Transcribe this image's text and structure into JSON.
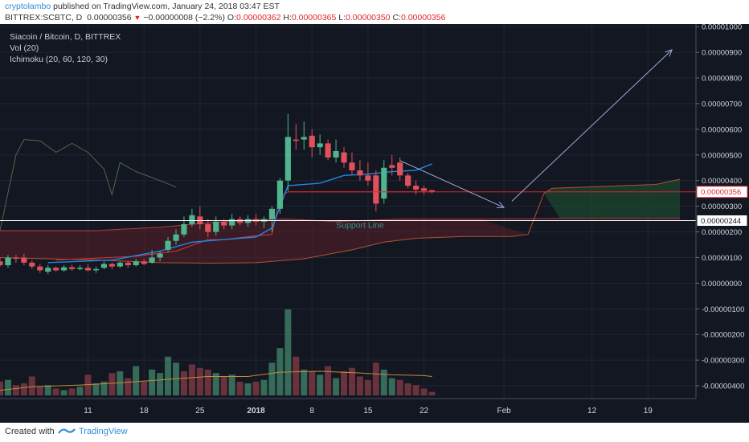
{
  "header": {
    "author": "cryptolambo",
    "published": "published on TradingView.com, January 24, 2018 03:47 EST",
    "symbol": "BITTREX:SCBTC, D",
    "last": "0.00000356",
    "change": "−0.00000008 (−2.2%)",
    "o_label": "O:",
    "o_value": "0.00000362",
    "h_label": "H:",
    "h_value": "0.00000365",
    "l_label": "L:",
    "l_value": "0.00000350",
    "c_label": "C:",
    "c_value": "0.00000356"
  },
  "legend": {
    "title": "Siacoin / Bitcoin, D, BITTREX",
    "vol": "Vol (20)",
    "ichimoku": "Ichimoku (20, 60, 120, 30)"
  },
  "footer": {
    "created": "Created with",
    "brand": "TradingView"
  },
  "colors": {
    "background": "#131722",
    "up": "#4fb58e",
    "down": "#e0515b",
    "ma": "#1e88e5",
    "support": "#ffffff",
    "arrow": "#9aa8d6",
    "last_price": "#e0252c"
  },
  "chart_data": {
    "type": "candlestick",
    "title": "Siacoin / Bitcoin, D, BITTREX",
    "y_axis": {
      "range": [
        -4.5e-06,
        1.01e-05
      ],
      "ticks": [
        "0.00001000",
        "0.00000900",
        "0.00000800",
        "0.00000700",
        "0.00000600",
        "0.00000500",
        "0.00000400",
        "0.00000300",
        "0.00000200",
        "0.00000100",
        "0.00000000",
        "-0.00000100",
        "-0.00000200",
        "-0.00000300",
        "-0.00000400"
      ],
      "tick_values": [
        1e-05,
        9e-06,
        8e-06,
        7e-06,
        6e-06,
        5e-06,
        4e-06,
        3e-06,
        2e-06,
        1e-06,
        0,
        -1e-06,
        -2e-06,
        -3e-06,
        -4e-06
      ]
    },
    "x_axis": {
      "ticks": [
        "11",
        "18",
        "25",
        "2018",
        "8",
        "15",
        "22",
        "Feb",
        "12",
        "19"
      ],
      "tick_days": [
        -21,
        -14,
        -7,
        0,
        7,
        14,
        21,
        31,
        42,
        49
      ],
      "range_days": [
        -32,
        55
      ]
    },
    "candles": [
      {
        "d": -32,
        "o": 8.5e-07,
        "h": 1e-06,
        "l": 6.5e-07,
        "c": 7e-07
      },
      {
        "d": -31,
        "o": 7e-07,
        "h": 1.1e-06,
        "l": 6e-07,
        "c": 1e-06
      },
      {
        "d": -30,
        "o": 1e-06,
        "h": 1.1e-06,
        "l": 8e-07,
        "c": 9.5e-07
      },
      {
        "d": -29,
        "o": 1e-06,
        "h": 1.15e-06,
        "l": 7e-07,
        "c": 8e-07
      },
      {
        "d": -28,
        "o": 8e-07,
        "h": 9e-07,
        "l": 5.5e-07,
        "c": 6.5e-07
      },
      {
        "d": -27,
        "o": 6.5e-07,
        "h": 7.5e-07,
        "l": 4e-07,
        "c": 5e-07
      },
      {
        "d": -26,
        "o": 4.5e-07,
        "h": 7e-07,
        "l": 3.5e-07,
        "c": 6e-07
      },
      {
        "d": -25,
        "o": 6e-07,
        "h": 6.5e-07,
        "l": 4.5e-07,
        "c": 5e-07
      },
      {
        "d": -24,
        "o": 5e-07,
        "h": 7e-07,
        "l": 4.5e-07,
        "c": 6.2e-07
      },
      {
        "d": -23,
        "o": 6.2e-07,
        "h": 7.2e-07,
        "l": 4.8e-07,
        "c": 5.5e-07
      },
      {
        "d": -22,
        "o": 5.5e-07,
        "h": 7e-07,
        "l": 5e-07,
        "c": 6e-07
      },
      {
        "d": -21,
        "o": 6e-07,
        "h": 7.5e-07,
        "l": 4.5e-07,
        "c": 5e-07
      },
      {
        "d": -20,
        "o": 5e-07,
        "h": 6.5e-07,
        "l": 4e-07,
        "c": 5.5e-07
      },
      {
        "d": -19,
        "o": 6e-07,
        "h": 8.5e-07,
        "l": 5.5e-07,
        "c": 7.5e-07
      },
      {
        "d": -18,
        "o": 7.5e-07,
        "h": 8e-07,
        "l": 5.5e-07,
        "c": 6.5e-07
      },
      {
        "d": -17,
        "o": 6.5e-07,
        "h": 8.5e-07,
        "l": 6e-07,
        "c": 8e-07
      },
      {
        "d": -16,
        "o": 8e-07,
        "h": 8.5e-07,
        "l": 6e-07,
        "c": 7e-07
      },
      {
        "d": -15,
        "o": 7e-07,
        "h": 9.5e-07,
        "l": 6.5e-07,
        "c": 8.5e-07
      },
      {
        "d": -14,
        "o": 8.5e-07,
        "h": 9.5e-07,
        "l": 7e-07,
        "c": 7.5e-07
      },
      {
        "d": -13,
        "o": 8e-07,
        "h": 1.3e-06,
        "l": 7.5e-07,
        "c": 1e-06
      },
      {
        "d": -12,
        "o": 1e-06,
        "h": 1.25e-06,
        "l": 8.5e-07,
        "c": 1.15e-06
      },
      {
        "d": -11,
        "o": 1.3e-06,
        "h": 1.8e-06,
        "l": 1.2e-06,
        "c": 1.65e-06
      },
      {
        "d": -10,
        "o": 1.65e-06,
        "h": 2.1e-06,
        "l": 1.5e-06,
        "c": 1.9e-06
      },
      {
        "d": -9,
        "o": 1.9e-06,
        "h": 2.6e-06,
        "l": 1.8e-06,
        "c": 2.3e-06
      },
      {
        "d": -8,
        "o": 2.3e-06,
        "h": 2.9e-06,
        "l": 2.2e-06,
        "c": 2.65e-06
      },
      {
        "d": -7,
        "o": 2.6e-06,
        "h": 3e-06,
        "l": 2.1e-06,
        "c": 2.3e-06
      },
      {
        "d": -6,
        "o": 2.3e-06,
        "h": 2.5e-06,
        "l": 1.8e-06,
        "c": 2e-06
      },
      {
        "d": -5,
        "o": 2e-06,
        "h": 2.6e-06,
        "l": 1.85e-06,
        "c": 2.4e-06
      },
      {
        "d": -4,
        "o": 2.4e-06,
        "h": 2.5e-06,
        "l": 2.1e-06,
        "c": 2.25e-06
      },
      {
        "d": -3,
        "o": 2.25e-06,
        "h": 2.7e-06,
        "l": 2.1e-06,
        "c": 2.5e-06
      },
      {
        "d": -2,
        "o": 2.5e-06,
        "h": 2.6e-06,
        "l": 2.25e-06,
        "c": 2.35e-06
      },
      {
        "d": -1,
        "o": 2.35e-06,
        "h": 2.65e-06,
        "l": 2.2e-06,
        "c": 2.5e-06
      },
      {
        "d": 0,
        "o": 2.5e-06,
        "h": 2.7e-06,
        "l": 2.25e-06,
        "c": 2.4e-06
      },
      {
        "d": 1,
        "o": 2.4e-06,
        "h": 2.6e-06,
        "l": 2.15e-06,
        "c": 2.5e-06
      },
      {
        "d": 2,
        "o": 2.5e-06,
        "h": 3e-06,
        "l": 2e-06,
        "c": 2.9e-06
      },
      {
        "d": 3,
        "o": 2.9e-06,
        "h": 4.1e-06,
        "l": 2.7e-06,
        "c": 4e-06
      },
      {
        "d": 4,
        "o": 4e-06,
        "h": 6.6e-06,
        "l": 3.6e-06,
        "c": 5.7e-06
      },
      {
        "d": 5,
        "o": 5.6e-06,
        "h": 6.2e-06,
        "l": 5.2e-06,
        "c": 5.55e-06
      },
      {
        "d": 6,
        "o": 5.6e-06,
        "h": 6.3e-06,
        "l": 5.2e-06,
        "c": 5.7e-06
      },
      {
        "d": 7,
        "o": 5.75e-06,
        "h": 6e-06,
        "l": 4.9e-06,
        "c": 5.3e-06
      },
      {
        "d": 8,
        "o": 5.3e-06,
        "h": 5.8e-06,
        "l": 5e-06,
        "c": 5.45e-06
      },
      {
        "d": 9,
        "o": 5.45e-06,
        "h": 5.6e-06,
        "l": 4.8e-06,
        "c": 4.9e-06
      },
      {
        "d": 10,
        "o": 4.9e-06,
        "h": 5.6e-06,
        "l": 4.7e-06,
        "c": 5.15e-06
      },
      {
        "d": 11,
        "o": 5.1e-06,
        "h": 5.3e-06,
        "l": 4.5e-06,
        "c": 4.7e-06
      },
      {
        "d": 12,
        "o": 4.7e-06,
        "h": 5.1e-06,
        "l": 4.2e-06,
        "c": 4.4e-06
      },
      {
        "d": 13,
        "o": 4.4e-06,
        "h": 4.8e-06,
        "l": 4e-06,
        "c": 4.2e-06
      },
      {
        "d": 14,
        "o": 4.2e-06,
        "h": 4.7e-06,
        "l": 3.8e-06,
        "c": 4e-06
      },
      {
        "d": 15,
        "o": 4.2e-06,
        "h": 4.4e-06,
        "l": 2.8e-06,
        "c": 3.1e-06
      },
      {
        "d": 16,
        "o": 3.3e-06,
        "h": 4.8e-06,
        "l": 3.1e-06,
        "c": 4.5e-06
      },
      {
        "d": 17,
        "o": 4.6e-06,
        "h": 5e-06,
        "l": 4.2e-06,
        "c": 4.5e-06
      },
      {
        "d": 18,
        "o": 4.7e-06,
        "h": 4.9e-06,
        "l": 4e-06,
        "c": 4.2e-06
      },
      {
        "d": 19,
        "o": 4.2e-06,
        "h": 4.3e-06,
        "l": 3.7e-06,
        "c": 3.8e-06
      },
      {
        "d": 20,
        "o": 3.8e-06,
        "h": 4e-06,
        "l": 3.45e-06,
        "c": 3.65e-06
      },
      {
        "d": 21,
        "o": 3.7e-06,
        "h": 3.8e-06,
        "l": 3.45e-06,
        "c": 3.6e-06
      },
      {
        "d": 22,
        "o": 3.62e-06,
        "h": 3.65e-06,
        "l": 3.5e-06,
        "c": 3.56e-06
      }
    ],
    "volume_lane": {
      "bars": [
        {
          "d": -32,
          "v": 16,
          "up": false
        },
        {
          "d": -31,
          "v": 18,
          "up": true
        },
        {
          "d": -30,
          "v": 12,
          "up": false
        },
        {
          "d": -29,
          "v": 14,
          "up": false
        },
        {
          "d": -28,
          "v": 22,
          "up": false
        },
        {
          "d": -27,
          "v": 10,
          "up": false
        },
        {
          "d": -26,
          "v": 12,
          "up": true
        },
        {
          "d": -25,
          "v": 8,
          "up": false
        },
        {
          "d": -24,
          "v": 6,
          "up": true
        },
        {
          "d": -23,
          "v": 8,
          "up": false
        },
        {
          "d": -22,
          "v": 10,
          "up": true
        },
        {
          "d": -21,
          "v": 24,
          "up": false
        },
        {
          "d": -20,
          "v": 14,
          "up": true
        },
        {
          "d": -19,
          "v": 16,
          "up": true
        },
        {
          "d": -18,
          "v": 26,
          "up": false
        },
        {
          "d": -17,
          "v": 28,
          "up": true
        },
        {
          "d": -16,
          "v": 20,
          "up": false
        },
        {
          "d": -15,
          "v": 34,
          "up": true
        },
        {
          "d": -14,
          "v": 16,
          "up": false
        },
        {
          "d": -13,
          "v": 30,
          "up": true
        },
        {
          "d": -12,
          "v": 26,
          "up": true
        },
        {
          "d": -11,
          "v": 45,
          "up": true
        },
        {
          "d": -10,
          "v": 38,
          "up": true
        },
        {
          "d": -9,
          "v": 28,
          "up": false
        },
        {
          "d": -8,
          "v": 36,
          "up": false
        },
        {
          "d": -7,
          "v": 32,
          "up": false
        },
        {
          "d": -6,
          "v": 30,
          "up": false
        },
        {
          "d": -5,
          "v": 26,
          "up": true
        },
        {
          "d": -4,
          "v": 22,
          "up": false
        },
        {
          "d": -3,
          "v": 24,
          "up": true
        },
        {
          "d": -2,
          "v": 16,
          "up": false
        },
        {
          "d": -1,
          "v": 14,
          "up": true
        },
        {
          "d": 0,
          "v": 16,
          "up": false
        },
        {
          "d": 1,
          "v": 18,
          "up": true
        },
        {
          "d": 2,
          "v": 38,
          "up": true
        },
        {
          "d": 3,
          "v": 55,
          "up": true
        },
        {
          "d": 4,
          "v": 100,
          "up": true
        },
        {
          "d": 5,
          "v": 45,
          "up": false
        },
        {
          "d": 6,
          "v": 30,
          "up": true
        },
        {
          "d": 7,
          "v": 28,
          "up": false
        },
        {
          "d": 8,
          "v": 24,
          "up": true
        },
        {
          "d": 9,
          "v": 34,
          "up": false
        },
        {
          "d": 10,
          "v": 20,
          "up": true
        },
        {
          "d": 11,
          "v": 28,
          "up": false
        },
        {
          "d": 12,
          "v": 32,
          "up": false
        },
        {
          "d": 13,
          "v": 22,
          "up": false
        },
        {
          "d": 14,
          "v": 18,
          "up": false
        },
        {
          "d": 15,
          "v": 38,
          "up": false
        },
        {
          "d": 16,
          "v": 30,
          "up": true
        },
        {
          "d": 17,
          "v": 20,
          "up": true
        },
        {
          "d": 18,
          "v": 18,
          "up": false
        },
        {
          "d": 19,
          "v": 14,
          "up": false
        },
        {
          "d": 20,
          "v": 12,
          "up": false
        },
        {
          "d": 21,
          "v": 8,
          "up": false
        },
        {
          "d": 22,
          "v": 4,
          "up": false
        }
      ],
      "ma": [
        {
          "d": -32,
          "v": 6
        },
        {
          "d": -28,
          "v": 10
        },
        {
          "d": -22,
          "v": 12
        },
        {
          "d": -18,
          "v": 14
        },
        {
          "d": -12,
          "v": 18
        },
        {
          "d": -6,
          "v": 22
        },
        {
          "d": -1,
          "v": 22
        },
        {
          "d": 3,
          "v": 27
        },
        {
          "d": 8,
          "v": 28
        },
        {
          "d": 13,
          "v": 26
        },
        {
          "d": 17,
          "v": 24
        },
        {
          "d": 21,
          "v": 23
        },
        {
          "d": 22,
          "v": 22
        }
      ]
    },
    "ichimoku": {
      "cloud_upper": [
        {
          "d": -32,
          "v": 2.05e-06
        },
        {
          "d": -20,
          "v": 2.05e-06
        },
        {
          "d": -12,
          "v": 2.18e-06
        },
        {
          "d": -6,
          "v": 2.35e-06
        },
        {
          "d": 0,
          "v": 2.48e-06
        },
        {
          "d": 4,
          "v": 2.5e-06
        },
        {
          "d": 10,
          "v": 2.4e-06
        },
        {
          "d": 18,
          "v": 2.5e-06
        },
        {
          "d": 28,
          "v": 2.5e-06
        },
        {
          "d": 38,
          "v": 2.52e-06
        },
        {
          "d": 53,
          "v": 2.52e-06
        }
      ],
      "cloud_lower": [
        {
          "d": -32,
          "v": 1e-06
        },
        {
          "d": -20,
          "v": 9e-07
        },
        {
          "d": -12,
          "v": 8e-07
        },
        {
          "d": -6,
          "v": 7.8e-07
        },
        {
          "d": 0,
          "v": 8e-07
        },
        {
          "d": 6,
          "v": 9.5e-07
        },
        {
          "d": 12,
          "v": 1.3e-06
        },
        {
          "d": 16,
          "v": 1.6e-06
        },
        {
          "d": 20,
          "v": 1.75e-06
        },
        {
          "d": 26,
          "v": 1.82e-06
        },
        {
          "d": 32,
          "v": 1.82e-06
        },
        {
          "d": 34,
          "v": 1.9e-06
        },
        {
          "d": 36,
          "v": 3.5e-06
        },
        {
          "d": 37,
          "v": 3.7e-06
        },
        {
          "d": 44,
          "v": 3.78e-06
        },
        {
          "d": 50,
          "v": 3.85e-06
        },
        {
          "d": 53,
          "v": 4.05e-06
        }
      ],
      "base_line": [
        {
          "d": -25,
          "v": 9e-07
        },
        {
          "d": -15,
          "v": 1.05e-06
        },
        {
          "d": -10,
          "v": 1.25e-06
        },
        {
          "d": -6,
          "v": 1.7e-06
        },
        {
          "d": -4,
          "v": 1.7e-06
        },
        {
          "d": 0,
          "v": 1.85e-06
        },
        {
          "d": 2,
          "v": 1.9e-06
        },
        {
          "d": 3,
          "v": 3.4e-06
        },
        {
          "d": 4,
          "v": 3.56e-06
        },
        {
          "d": 22,
          "v": 3.56e-06
        }
      ],
      "conversion_line": [
        {
          "d": -26,
          "v": 8e-07
        },
        {
          "d": -18,
          "v": 9e-07
        },
        {
          "d": -12,
          "v": 1.25e-06
        },
        {
          "d": -8,
          "v": 1.6e-06
        },
        {
          "d": -4,
          "v": 1.7e-06
        },
        {
          "d": 0,
          "v": 1.8e-06
        },
        {
          "d": 2,
          "v": 2.15e-06
        },
        {
          "d": 4,
          "v": 3.8e-06
        },
        {
          "d": 8,
          "v": 3.9e-06
        },
        {
          "d": 11,
          "v": 4.2e-06
        },
        {
          "d": 14,
          "v": 4.25e-06
        },
        {
          "d": 17,
          "v": 4.35e-06
        },
        {
          "d": 20,
          "v": 4.4e-06
        },
        {
          "d": 22,
          "v": 4.65e-06
        }
      ],
      "lagging_span": [
        {
          "d": -32,
          "v": 2.05e-06
        },
        {
          "d": -30,
          "v": 5e-06
        },
        {
          "d": -29,
          "v": 5.6e-06
        },
        {
          "d": -27,
          "v": 5.55e-06
        },
        {
          "d": -25,
          "v": 5.1e-06
        },
        {
          "d": -23,
          "v": 5.45e-06
        },
        {
          "d": -21,
          "v": 5.1e-06
        },
        {
          "d": -19,
          "v": 4.45e-06
        },
        {
          "d": -18,
          "v": 3.45e-06
        },
        {
          "d": -17,
          "v": 4.7e-06
        },
        {
          "d": -15,
          "v": 4.35e-06
        },
        {
          "d": -12,
          "v": 4e-06
        },
        {
          "d": -10,
          "v": 3.75e-06
        }
      ]
    },
    "annotations": {
      "last_price": {
        "value": 3.56e-06,
        "label": "0.00000356"
      },
      "support": {
        "value": 2.44e-06,
        "label": "0.00000244",
        "text": "Support Line"
      },
      "trend_arrow": {
        "from": {
          "d": 18,
          "v": 4.78e-06
        },
        "to": {
          "d": 31,
          "v": 2.95e-06
        }
      },
      "target_arrow": {
        "from": {
          "d": 32,
          "v": 3.2e-06
        },
        "to": {
          "d": 52,
          "v": 9.1e-06
        }
      }
    }
  }
}
